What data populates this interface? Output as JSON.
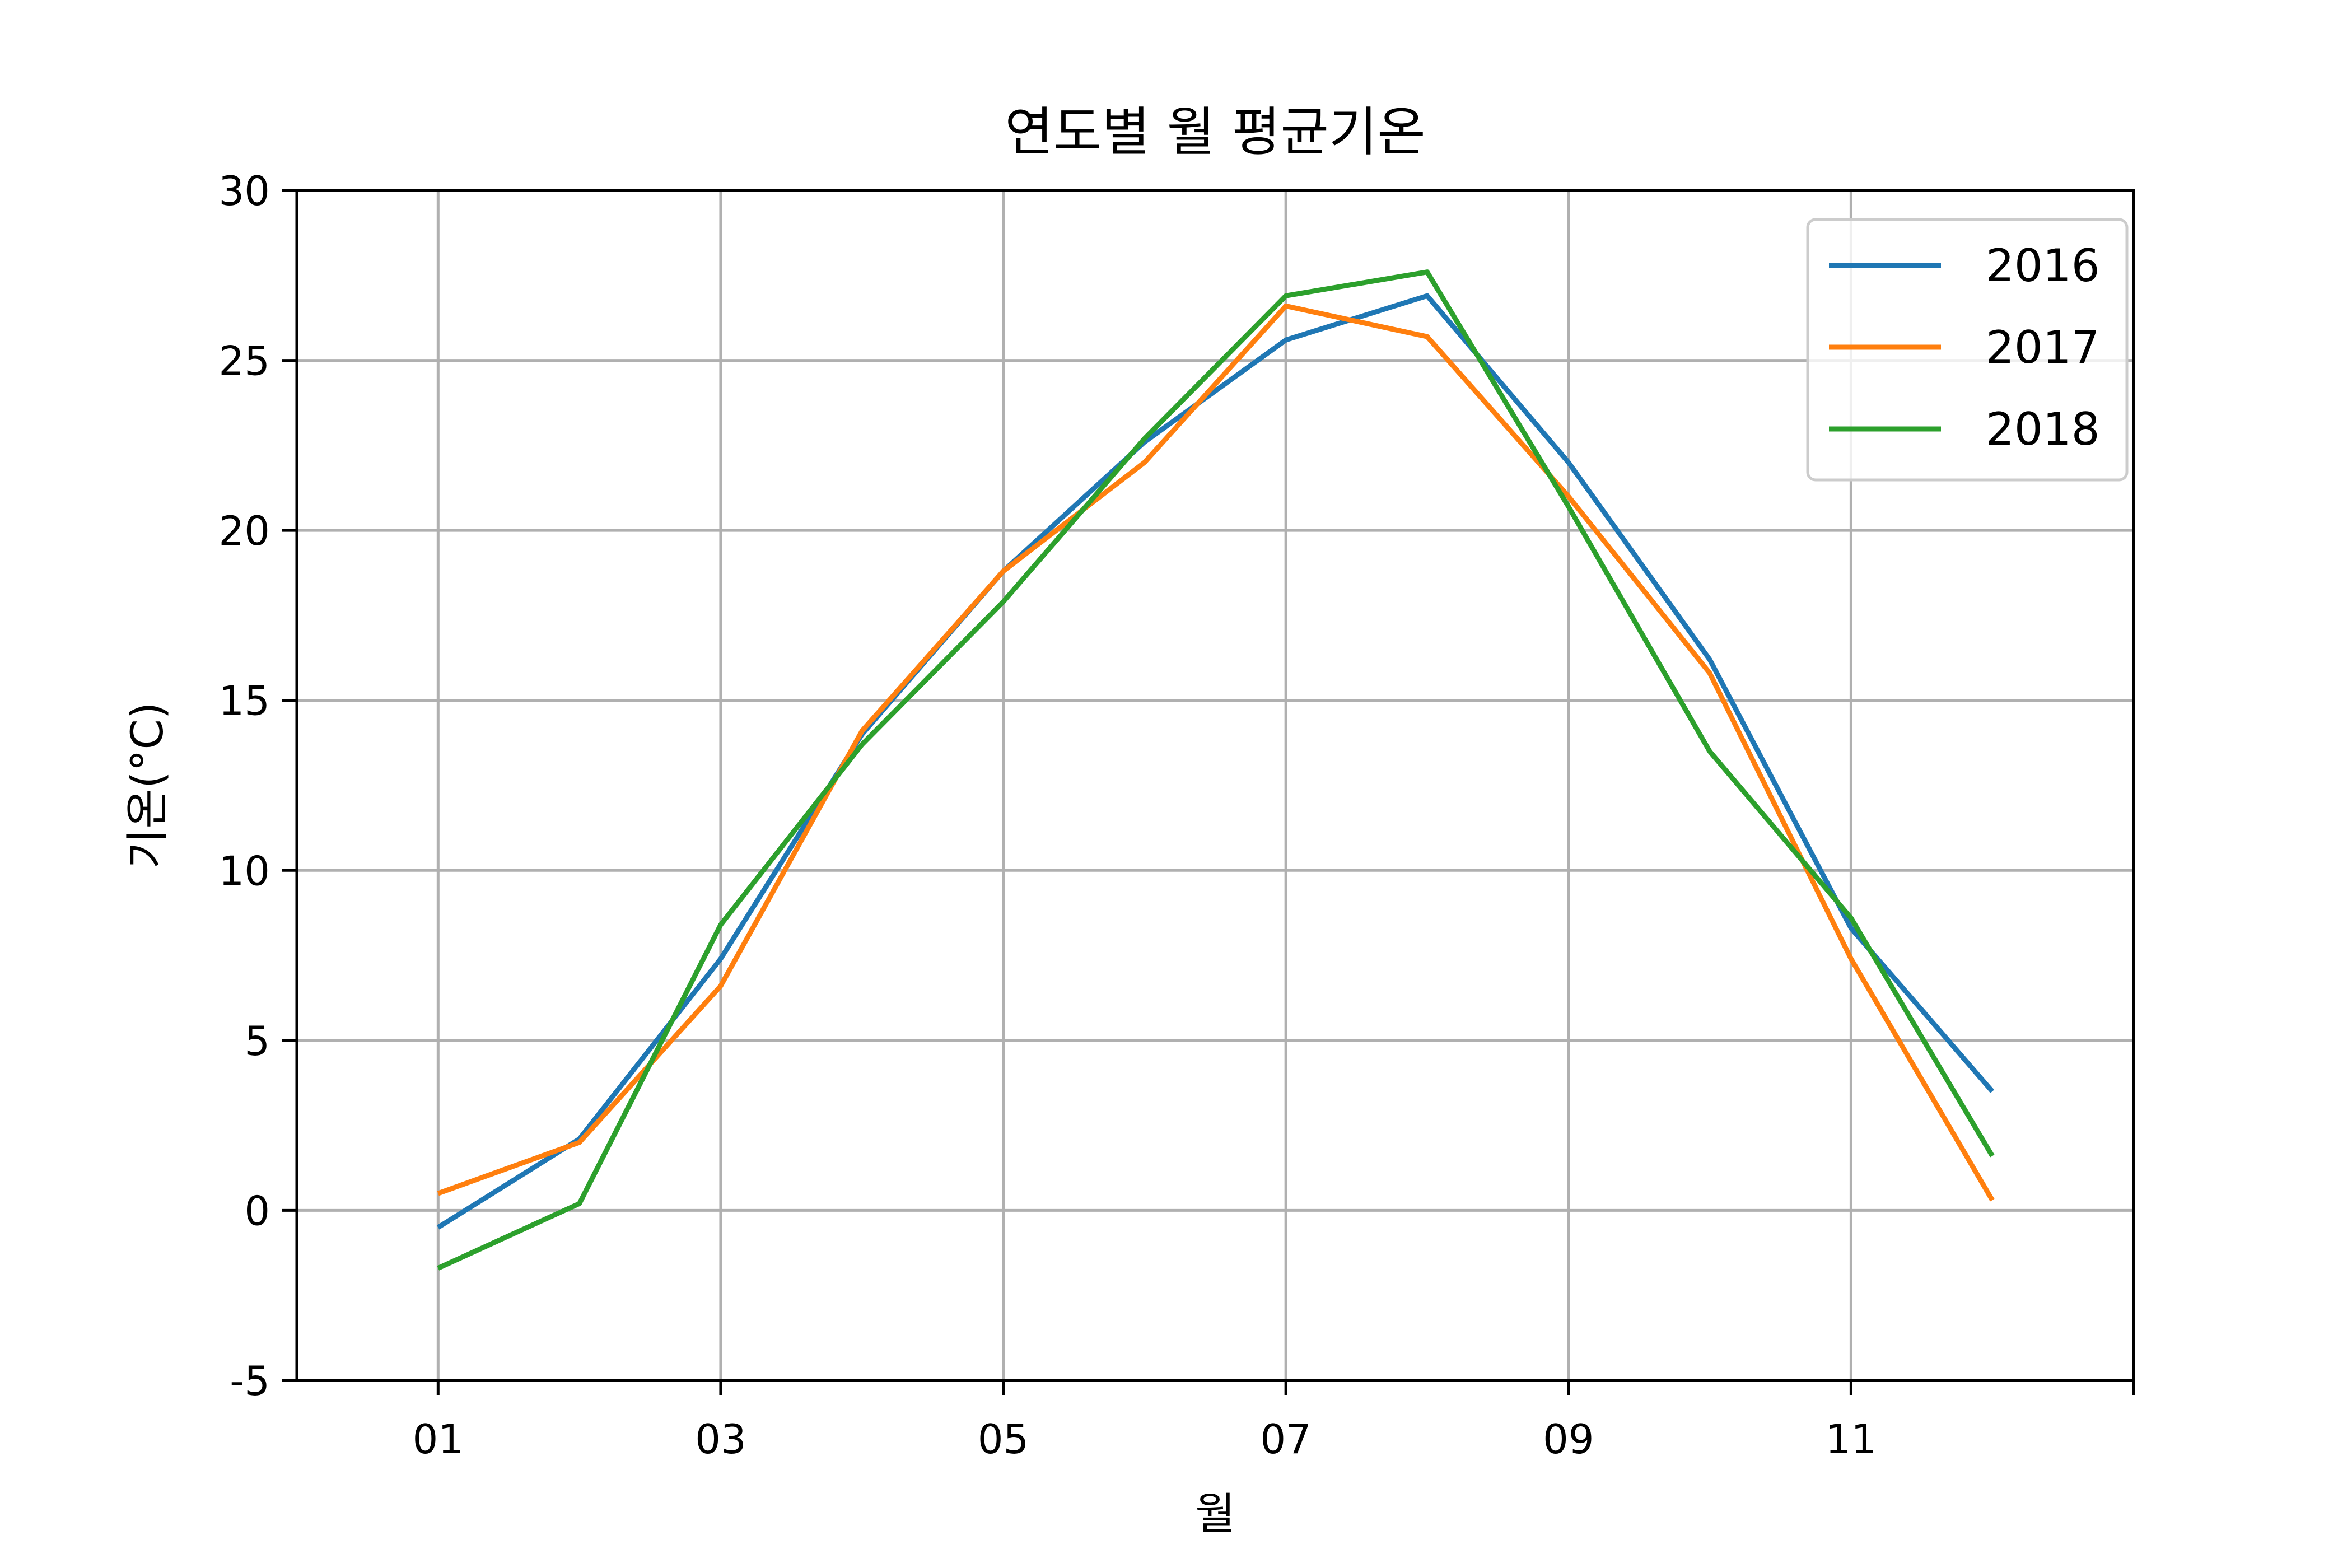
{
  "chart_data": {
    "type": "line",
    "title": "연도별 월 평균기온",
    "xlabel": "월",
    "ylabel": "기온(°C)",
    "x": [
      "01",
      "02",
      "03",
      "04",
      "05",
      "06",
      "07",
      "08",
      "09",
      "10",
      "11",
      "12"
    ],
    "x_tick_labels": [
      "01",
      "03",
      "05",
      "07",
      "09",
      "11"
    ],
    "xlim": [
      0,
      13
    ],
    "ylim": [
      -5,
      30
    ],
    "y_ticks": [
      -5,
      0,
      5,
      10,
      15,
      20,
      25,
      30
    ],
    "y_tick_labels": [
      "-5",
      "0",
      "5",
      "10",
      "15",
      "20",
      "25",
      "30"
    ],
    "grid": true,
    "legend_position": "top-right",
    "series": [
      {
        "name": "2016",
        "color": "#1f77b4",
        "values": [
          -0.5,
          2.1,
          7.4,
          14.0,
          18.8,
          22.6,
          25.6,
          26.9,
          22.0,
          16.2,
          8.3,
          3.5
        ]
      },
      {
        "name": "2017",
        "color": "#ff7f0e",
        "values": [
          0.5,
          2.0,
          6.6,
          14.1,
          18.8,
          22.0,
          26.6,
          25.7,
          21.0,
          15.8,
          7.4,
          0.3
        ]
      },
      {
        "name": "2018",
        "color": "#2ca02c",
        "values": [
          -1.7,
          0.2,
          8.4,
          13.7,
          17.9,
          22.7,
          26.9,
          27.6,
          20.7,
          13.5,
          8.6,
          1.6
        ]
      }
    ]
  }
}
